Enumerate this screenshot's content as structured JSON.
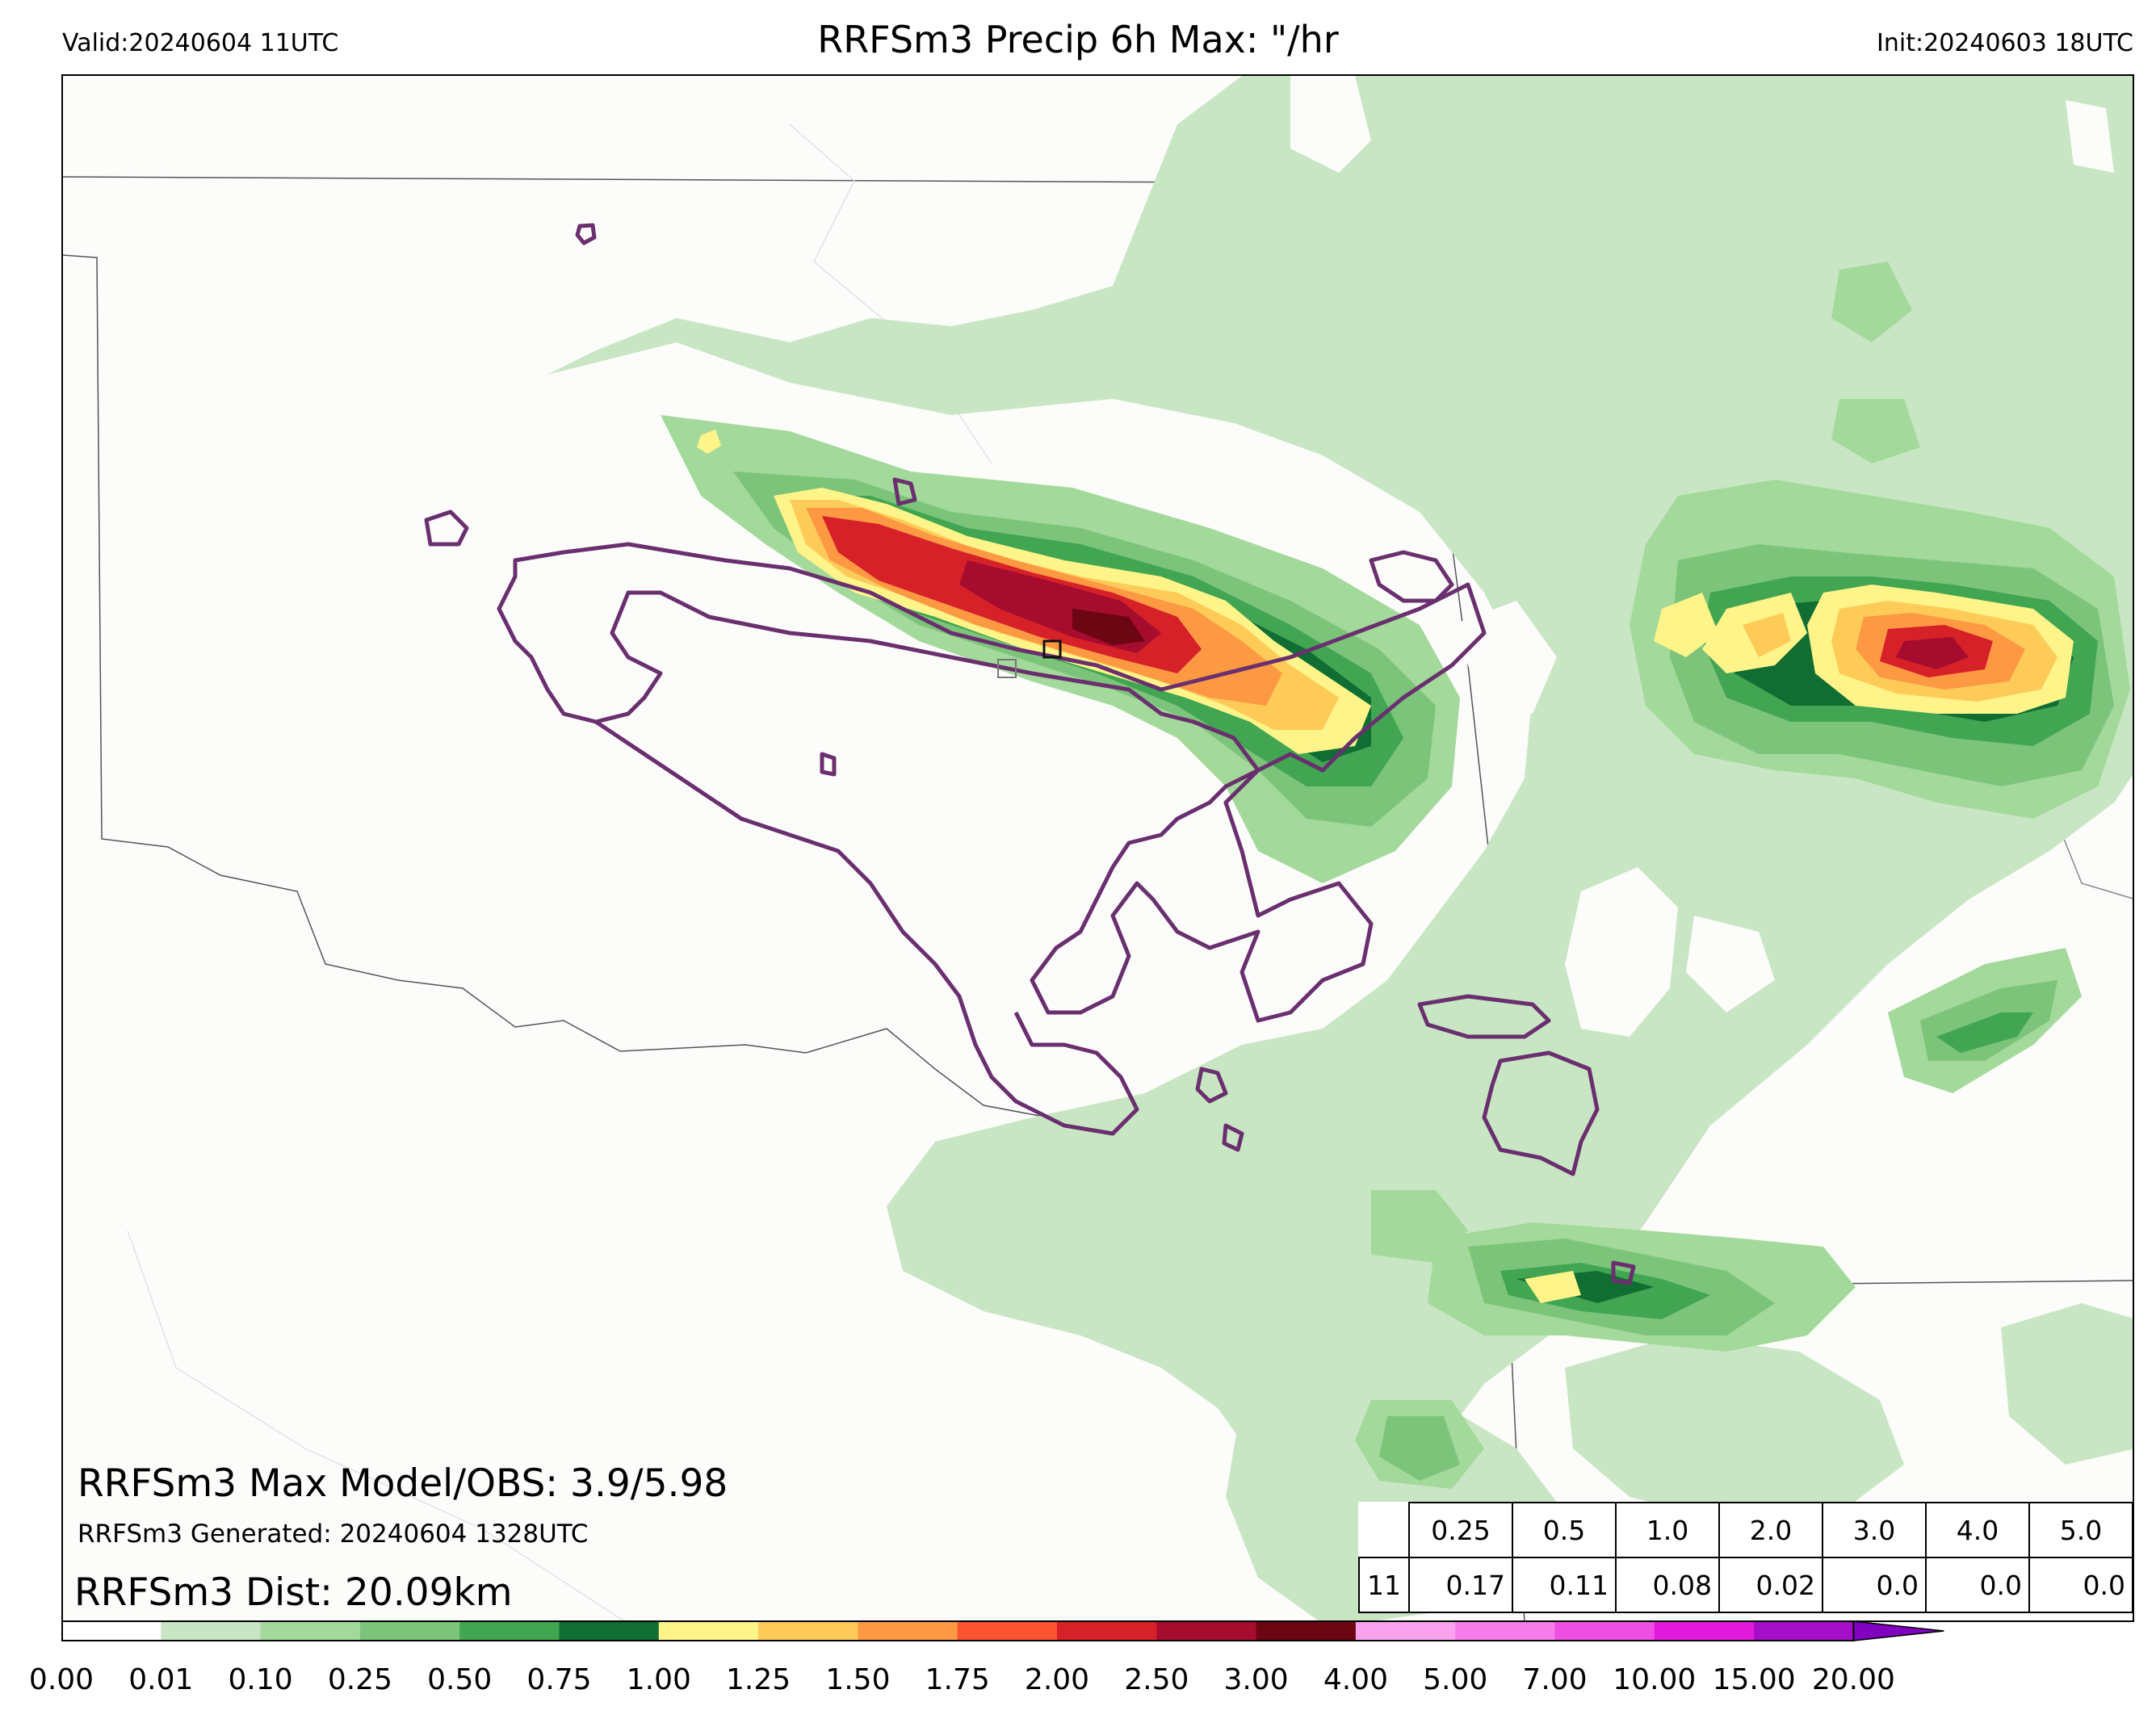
{
  "header": {
    "valid": "Valid:20240604 11UTC",
    "title": "RRFSm3 Precip 6h Max: \"/hr",
    "init": "Init:20240603 18UTC"
  },
  "annotations": {
    "max_model_obs": "RRFSm3 Max Model/OBS: 3.9/5.98",
    "generated": "RRFSm3 Generated: 20240604 1328UTC",
    "dist": "RRFSm3 Dist: 20.09km"
  },
  "stats_table": {
    "thresholds": [
      "0.25",
      "0.5",
      "1.0",
      "2.0",
      "3.0",
      "4.0",
      "5.0"
    ],
    "row_label": "11",
    "values": [
      "0.17",
      "0.11",
      "0.08",
      "0.02",
      "0.0",
      "0.0",
      "0.0"
    ]
  },
  "colorbar": {
    "ticks": [
      "0.00",
      "0.01",
      "0.10",
      "0.25",
      "0.50",
      "0.75",
      "1.00",
      "1.25",
      "1.50",
      "1.75",
      "2.00",
      "2.50",
      "3.00",
      "4.00",
      "5.00",
      "7.00",
      "10.00",
      "15.00",
      "20.00"
    ],
    "colors": [
      "#ffffff",
      "#c8e6c3",
      "#a3d99a",
      "#7cc47a",
      "#41a552",
      "#106e33",
      "#fff489",
      "#fecb58",
      "#fd9843",
      "#fb5332",
      "#d62128",
      "#a50c2d",
      "#6b0612",
      "#f9a3ef",
      "#f57ce9",
      "#ee4ee2",
      "#e31adb",
      "#a50fc7",
      "#8000c0"
    ]
  },
  "map": {
    "precip_levels_in_per_hr": [
      0.01,
      0.1,
      0.25,
      0.5,
      0.75,
      1.0,
      1.25,
      1.5,
      1.75,
      2.0,
      2.5,
      3.0
    ],
    "obs_contour_color": "#6a2f6e",
    "boundary_color": "#555555"
  }
}
